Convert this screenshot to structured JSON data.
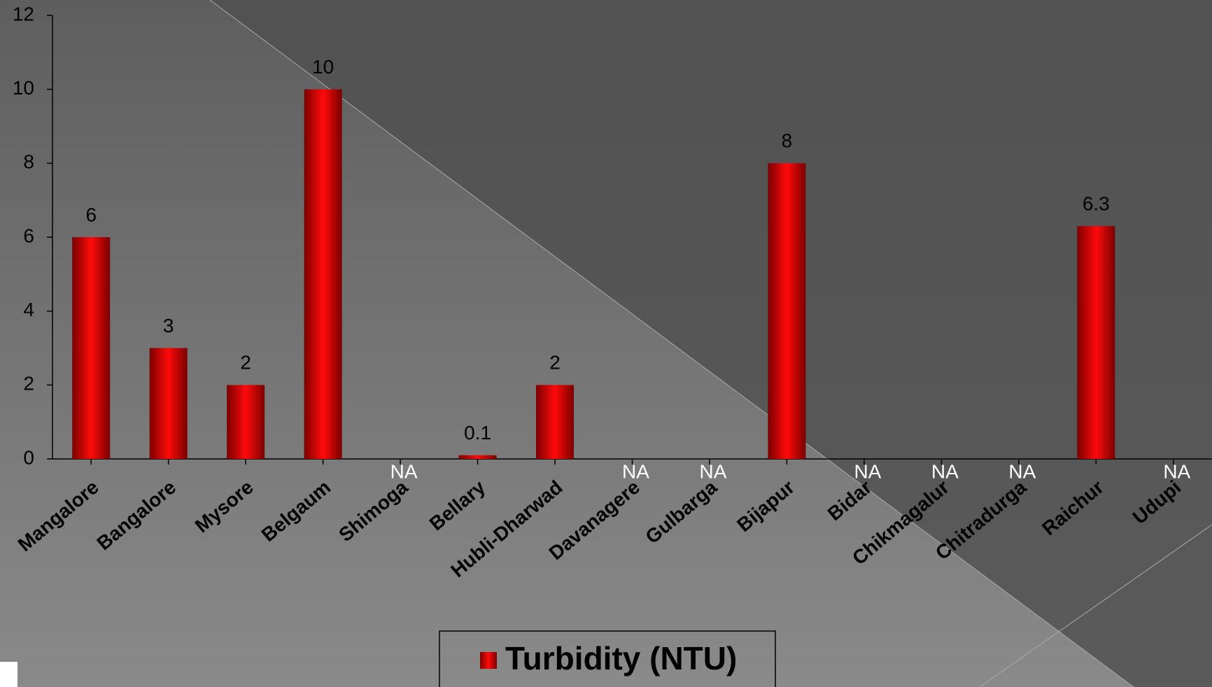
{
  "chart_data": {
    "type": "bar",
    "categories": [
      "Mangalore",
      "Bangalore",
      "Mysore",
      "Belgaum",
      "Shimoga",
      "Bellary",
      "Hubli-Dharwad",
      "Davanagere",
      "Gulbarga",
      "Bijapur",
      "Bidar",
      "Chikmagalur",
      "Chitradurga",
      "Raichur",
      "Udupi"
    ],
    "series": [
      {
        "name": "Turbidity (NTU)",
        "color": "#ff0000",
        "values": [
          6,
          3,
          2,
          10,
          null,
          0.1,
          2,
          null,
          null,
          8,
          null,
          null,
          null,
          6.3,
          null
        ],
        "value_labels": [
          "6",
          "3",
          "2",
          "10",
          "NA",
          "0.1",
          "2",
          "NA",
          "NA",
          "8",
          "NA",
          "NA",
          "NA",
          "6.3",
          "NA"
        ]
      }
    ],
    "ylim": [
      0,
      12
    ],
    "yticks": [
      0,
      2,
      4,
      6,
      8,
      10,
      12
    ],
    "legend": "bottom"
  }
}
